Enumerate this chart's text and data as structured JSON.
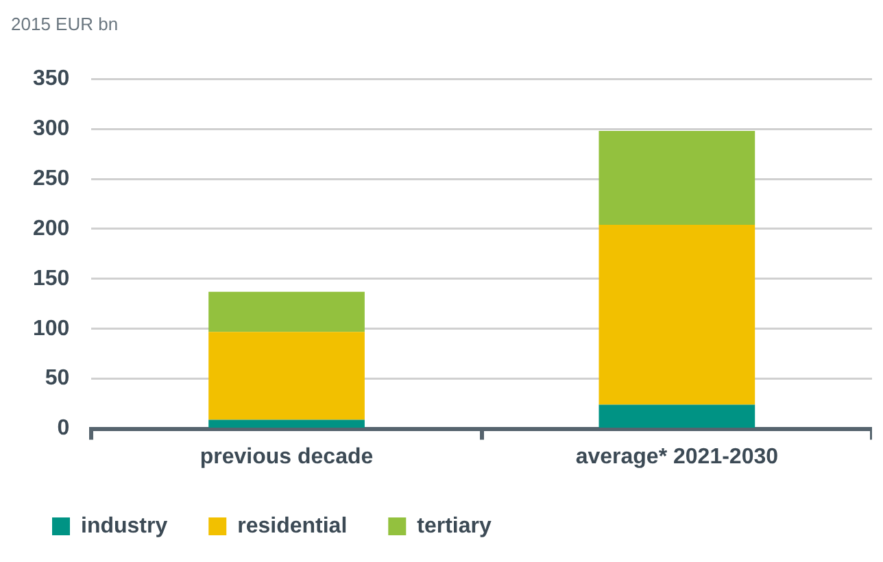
{
  "chart_data": {
    "type": "bar",
    "ylabel": "2015 EUR bn",
    "categories": [
      "previous decade",
      "average* 2021-2030"
    ],
    "stacked": true,
    "series": [
      {
        "name": "industry",
        "color": "#009384",
        "values": [
          9,
          24
        ]
      },
      {
        "name": "residential",
        "color": "#f2c000",
        "values": [
          88,
          180
        ]
      },
      {
        "name": "tertiary",
        "color": "#93c13e",
        "values": [
          40,
          94
        ]
      }
    ],
    "ylim": [
      0,
      350
    ],
    "yticks": [
      0,
      50,
      100,
      150,
      200,
      250,
      300,
      350
    ],
    "grid": "y",
    "legend": "bottom"
  }
}
